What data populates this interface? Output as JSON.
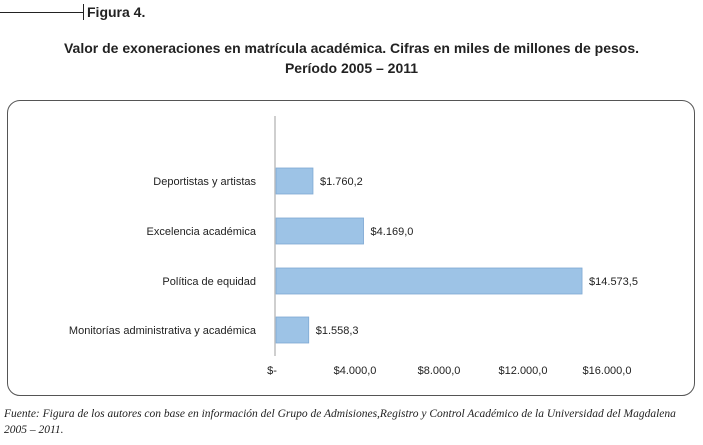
{
  "figure": {
    "label": "Figura 4."
  },
  "chart_data": {
    "type": "bar",
    "orientation": "horizontal",
    "title_line1": "Valor de exoneraciones en matrícula académica. Cifras en miles de millones de pesos.",
    "title_line2": "Período 2005 – 2011",
    "categories": [
      "Deportistas y artistas",
      "Excelencia académica",
      "Política de equidad",
      "Monitorías administrativa y académica"
    ],
    "values": [
      1760.2,
      4169.0,
      14573.5,
      1558.3
    ],
    "value_labels": [
      "$1.760,2",
      "$4.169,0",
      "$14.573,5",
      "$1.558,3"
    ],
    "xlim": [
      0,
      16000
    ],
    "xticks": [
      0,
      4000,
      8000,
      12000,
      16000
    ],
    "xtick_labels": [
      "$-",
      "$4.000,0",
      "$8.000,0",
      "$12.000,0",
      "$16.000,0"
    ],
    "bar_color": "#9dc3e6",
    "grid": false
  },
  "source": {
    "text": "Fuente: Figura de los autores con base en información del Grupo de Admisiones,Registro y Control Académico de la Universidad del Magdalena 2005 – 2011."
  }
}
